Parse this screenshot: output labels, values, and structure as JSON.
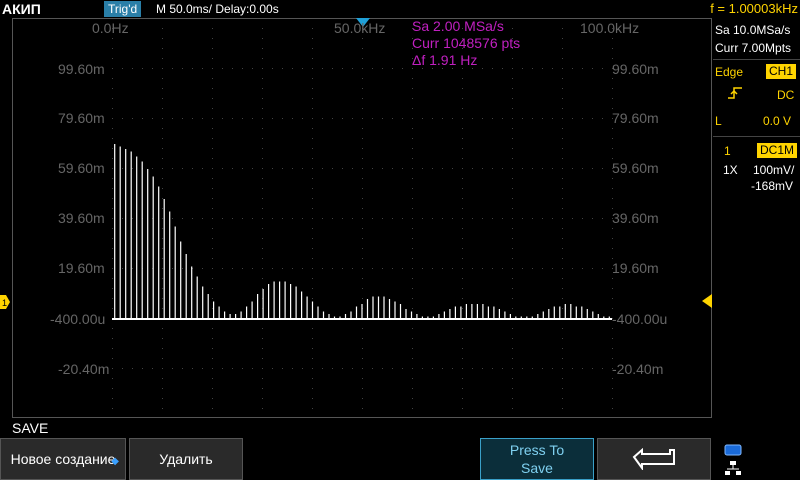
{
  "header": {
    "brand": "АКИП",
    "trigger_status": "Trig'd",
    "timebase": "M 50.0ms/ Delay:0.00s",
    "frequency": "f = 1.00003kHz"
  },
  "plot": {
    "x_labels": [
      "0.0Hz",
      "50.0kHz",
      "100.0kHz"
    ],
    "y_labels": [
      "99.60m",
      "79.60m",
      "59.60m",
      "39.60m",
      "19.60m",
      "-400.00u",
      "-20.40m"
    ],
    "measurements": [
      "Sa 2.00 MSa/s",
      "Curr 1048576 pts",
      "Δf 1.91 Hz"
    ],
    "trace_color": "#ffffff",
    "marker_color": "#ffd400",
    "trigger_marker_color": "#1fa0d8"
  },
  "right_panel": {
    "sample_rate": "Sa 10.0MSa/s",
    "memory": "Curr 7.00Mpts",
    "trigger_type": "Edge",
    "trigger_source": "CH1",
    "coupling": "DC",
    "level_label": "L",
    "level_value": "0.0 V",
    "channel_num": "1",
    "channel_coupling": "DC1M",
    "probe": "1X",
    "scale": "100mV/",
    "offset": "-168mV"
  },
  "chart_data": {
    "type": "bar",
    "xlabel": "",
    "ylabel": "",
    "x_range_hz": [
      0,
      100000
    ],
    "y_range_ticks": [
      99.6,
      79.6,
      59.6,
      39.6,
      19.6,
      -0.4,
      -20.4
    ],
    "grid": true,
    "values": [
      70,
      69,
      68,
      67,
      65,
      63,
      60,
      57,
      53,
      48,
      43,
      37,
      31,
      26,
      21,
      17,
      13,
      10,
      7,
      5,
      3,
      2,
      2,
      3,
      5,
      7,
      10,
      12,
      14,
      15,
      15,
      15,
      14,
      13,
      11,
      9,
      7,
      5,
      3,
      2,
      1,
      1,
      2,
      3,
      5,
      6,
      8,
      9,
      9,
      9,
      8,
      7,
      6,
      4,
      3,
      2,
      1,
      1,
      1,
      2,
      3,
      4,
      5,
      5,
      6,
      6,
      6,
      6,
      5,
      5,
      4,
      3,
      2,
      1,
      1,
      1,
      1,
      2,
      3,
      4,
      5,
      5,
      6,
      6,
      5,
      5,
      4,
      3,
      2,
      1,
      1
    ]
  },
  "footer": {
    "menu_title": "SAVE",
    "softkeys": [
      "Новое создание",
      "Удалить",
      "Press To",
      "Save"
    ]
  }
}
